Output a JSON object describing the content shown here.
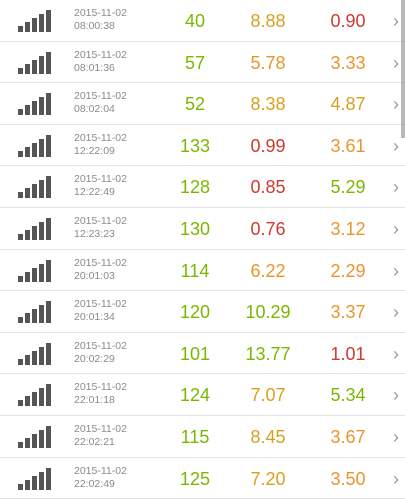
{
  "colors": {
    "green": "#7ab800",
    "orange": "#e8962c",
    "gold": "#d9a020",
    "red": "#d03a30"
  },
  "rows": [
    {
      "date": "2015-11-02",
      "time": "08:00:38",
      "v1": "40",
      "c1": "green",
      "v2": "8.88",
      "c2": "gold",
      "v3": "0.90",
      "c3": "red"
    },
    {
      "date": "2015-11-02",
      "time": "08:01:36",
      "v1": "57",
      "c1": "green",
      "v2": "5.78",
      "c2": "orange",
      "v3": "3.33",
      "c3": "orange"
    },
    {
      "date": "2015-11-02",
      "time": "08:02:04",
      "v1": "52",
      "c1": "green",
      "v2": "8.38",
      "c2": "gold",
      "v3": "4.87",
      "c3": "gold"
    },
    {
      "date": "2015-11-02",
      "time": "12:22:09",
      "v1": "133",
      "c1": "green",
      "v2": "0.99",
      "c2": "red",
      "v3": "3.61",
      "c3": "orange"
    },
    {
      "date": "2015-11-02",
      "time": "12:22:49",
      "v1": "128",
      "c1": "green",
      "v2": "0.85",
      "c2": "red",
      "v3": "5.29",
      "c3": "green"
    },
    {
      "date": "2015-11-02",
      "time": "12:23:23",
      "v1": "130",
      "c1": "green",
      "v2": "0.76",
      "c2": "red",
      "v3": "3.12",
      "c3": "orange"
    },
    {
      "date": "2015-11-02",
      "time": "20:01:03",
      "v1": "114",
      "c1": "green",
      "v2": "6.22",
      "c2": "orange",
      "v3": "2.29",
      "c3": "orange"
    },
    {
      "date": "2015-11-02",
      "time": "20:01:34",
      "v1": "120",
      "c1": "green",
      "v2": "10.29",
      "c2": "green",
      "v3": "3.37",
      "c3": "orange"
    },
    {
      "date": "2015-11-02",
      "time": "20:02:29",
      "v1": "101",
      "c1": "green",
      "v2": "13.77",
      "c2": "green",
      "v3": "1.01",
      "c3": "red"
    },
    {
      "date": "2015-11-02",
      "time": "22:01:18",
      "v1": "124",
      "c1": "green",
      "v2": "7.07",
      "c2": "gold",
      "v3": "5.34",
      "c3": "green"
    },
    {
      "date": "2015-11-02",
      "time": "22:02:21",
      "v1": "115",
      "c1": "green",
      "v2": "8.45",
      "c2": "gold",
      "v3": "3.67",
      "c3": "orange"
    },
    {
      "date": "2015-11-02",
      "time": "22:02:49",
      "v1": "125",
      "c1": "green",
      "v2": "7.20",
      "c2": "gold",
      "v3": "3.50",
      "c3": "orange"
    }
  ],
  "chevron": "›",
  "signal_icon": "signal-bars-icon"
}
